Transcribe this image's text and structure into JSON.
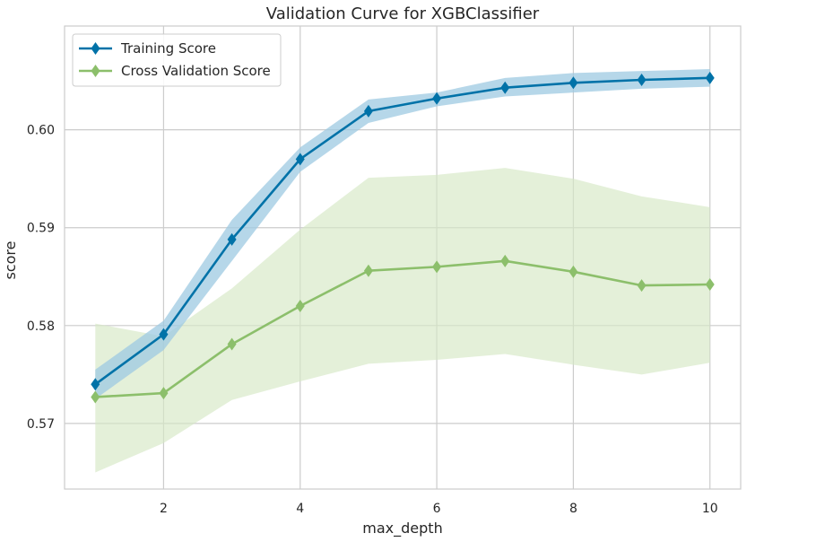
{
  "chart_data": {
    "type": "line",
    "title": "Validation Curve for XGBClassifier",
    "xlabel": "max_depth",
    "ylabel": "score",
    "x": [
      1,
      2,
      3,
      4,
      5,
      6,
      7,
      8,
      9,
      10
    ],
    "xlim": [
      0.55,
      10.45
    ],
    "ylim": [
      0.5633,
      0.6106
    ],
    "x_ticks": [
      2,
      4,
      6,
      8,
      10
    ],
    "x_tick_labels": [
      "2",
      "4",
      "6",
      "8",
      "10"
    ],
    "y_ticks": [
      0.57,
      0.58,
      0.59,
      0.6
    ],
    "y_tick_labels": [
      "0.57",
      "0.58",
      "0.59",
      "0.60"
    ],
    "grid": true,
    "legend_position": "top-left",
    "series": [
      {
        "name": "Training Score",
        "color": "#0072a8",
        "band_color": "#9ecae1",
        "marker": "diamond",
        "values": [
          0.574,
          0.5791,
          0.5888,
          0.597,
          0.6019,
          0.6032,
          0.6043,
          0.6048,
          0.6051,
          0.6053
        ],
        "band_upper": [
          0.5755,
          0.5805,
          0.5908,
          0.5982,
          0.6031,
          0.6038,
          0.6053,
          0.6058,
          0.606,
          0.6062
        ],
        "band_lower": [
          0.5725,
          0.5775,
          0.5866,
          0.5957,
          0.6007,
          0.6024,
          0.6034,
          0.6038,
          0.6042,
          0.6044
        ]
      },
      {
        "name": "Cross Validation Score",
        "color": "#8cbf6b",
        "band_color": "#d5e8c4",
        "marker": "diamond",
        "values": [
          0.5727,
          0.5731,
          0.5781,
          0.582,
          0.5856,
          0.586,
          0.5866,
          0.5855,
          0.5841,
          0.5842
        ],
        "band_upper": [
          0.5802,
          0.5789,
          0.5838,
          0.5898,
          0.5951,
          0.5954,
          0.5961,
          0.595,
          0.5932,
          0.5921
        ],
        "band_lower": [
          0.565,
          0.568,
          0.5724,
          0.5743,
          0.5761,
          0.5765,
          0.5771,
          0.576,
          0.575,
          0.5762
        ]
      }
    ]
  }
}
